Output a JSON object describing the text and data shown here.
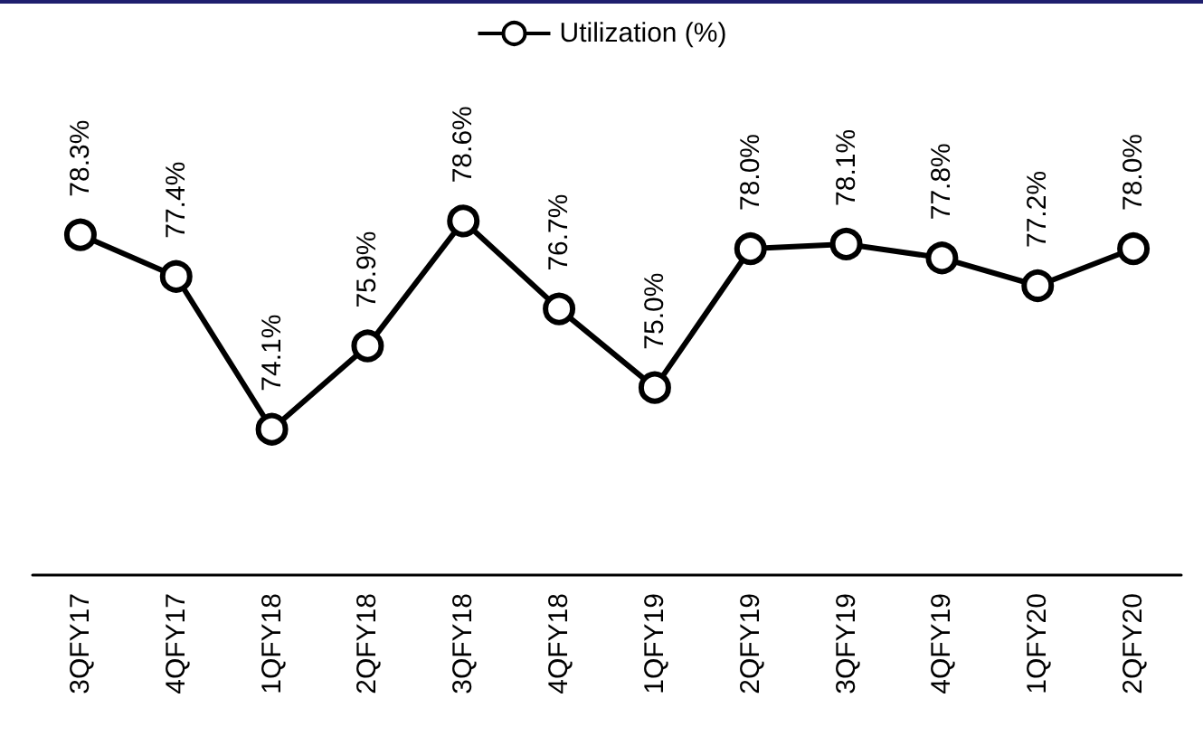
{
  "chart_data": {
    "type": "line",
    "categories": [
      "3QFY17",
      "4QFY17",
      "1QFY18",
      "2QFY18",
      "3QFY18",
      "4QFY18",
      "1QFY19",
      "2QFY19",
      "3QFY19",
      "4QFY19",
      "1QFY20",
      "2QFY20"
    ],
    "series": [
      {
        "name": "Utilization (%)",
        "color": "#000000",
        "values": [
          78.3,
          77.4,
          74.1,
          75.9,
          78.6,
          76.7,
          75.0,
          78.0,
          78.1,
          77.8,
          77.2,
          78.0
        ],
        "value_labels": [
          "78.3%",
          "77.4%",
          "74.1%",
          "75.9%",
          "78.6%",
          "76.7%",
          "75.0%",
          "78.0%",
          "78.1%",
          "77.8%",
          "77.2%",
          "78.0%"
        ]
      }
    ],
    "tick_labels": "x",
    "grid": false,
    "legend": "top",
    "marker": "circle",
    "line_style": "solid"
  }
}
